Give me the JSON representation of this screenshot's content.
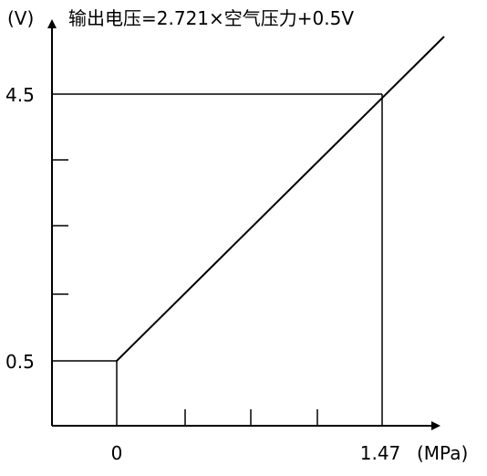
{
  "chart_data": {
    "type": "line",
    "title": "输出电压=2.721×空气压力+0.5V",
    "ylabel": "(V)",
    "xlabel": "(MPa)",
    "x_ticks": [
      "0",
      "1.47"
    ],
    "y_ticks": [
      "0.5",
      "4.5"
    ],
    "series": [
      {
        "x": [
          0,
          1.47
        ],
        "y": [
          0.5,
          4.5
        ]
      }
    ],
    "grid": false
  }
}
